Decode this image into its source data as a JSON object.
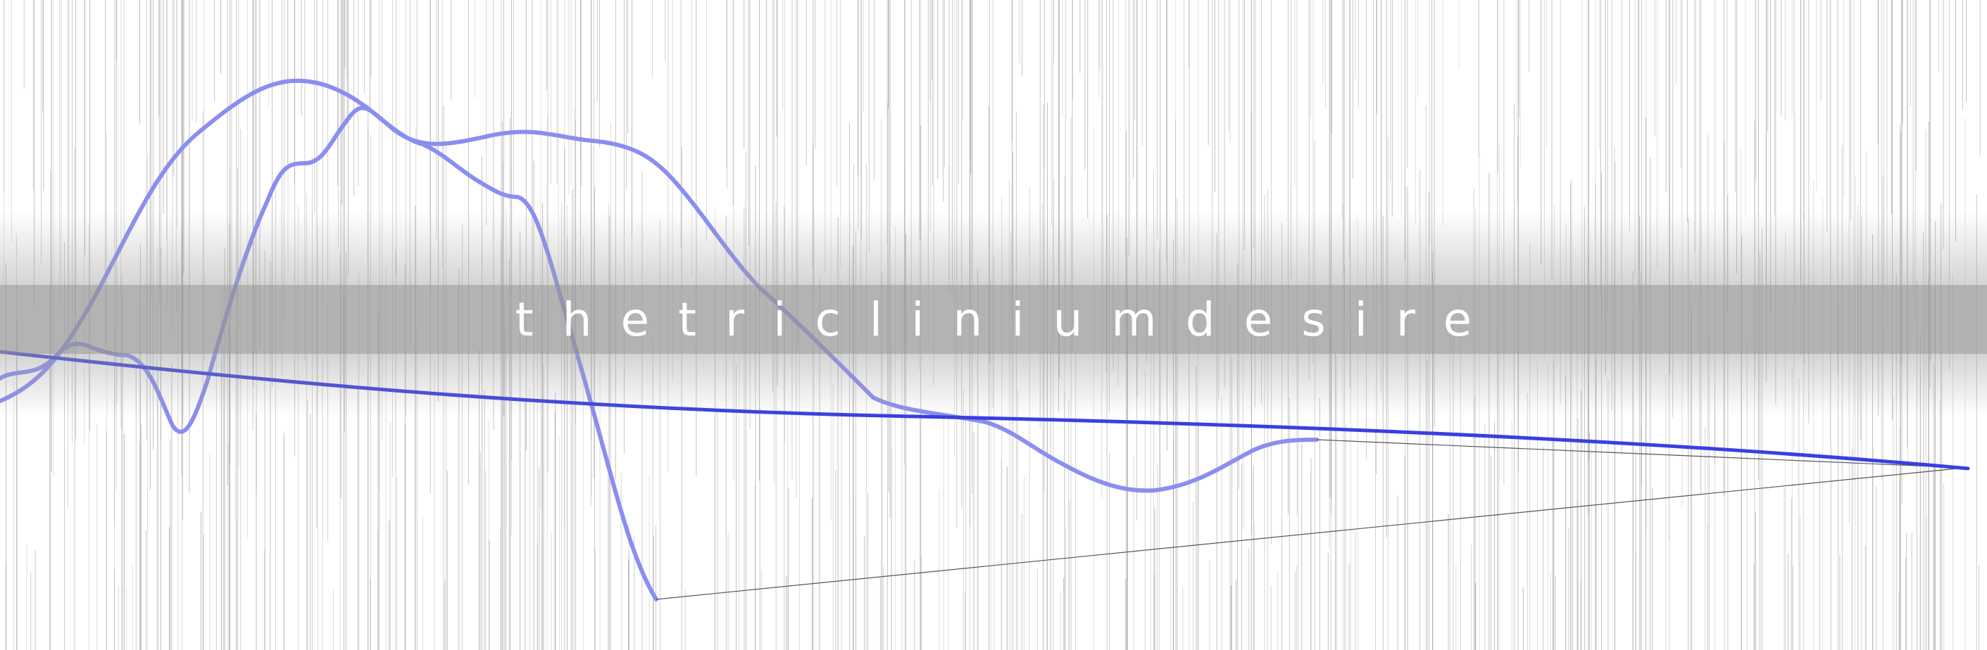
{
  "title": "thetricliniumdesire",
  "colors": {
    "background": "#ffffff",
    "line_main": "#3a3fe0",
    "line_soft": "#8a8ef0",
    "hair": "#9a9a9a",
    "band": "#a0a0a0",
    "title_text": "#ffffff"
  }
}
